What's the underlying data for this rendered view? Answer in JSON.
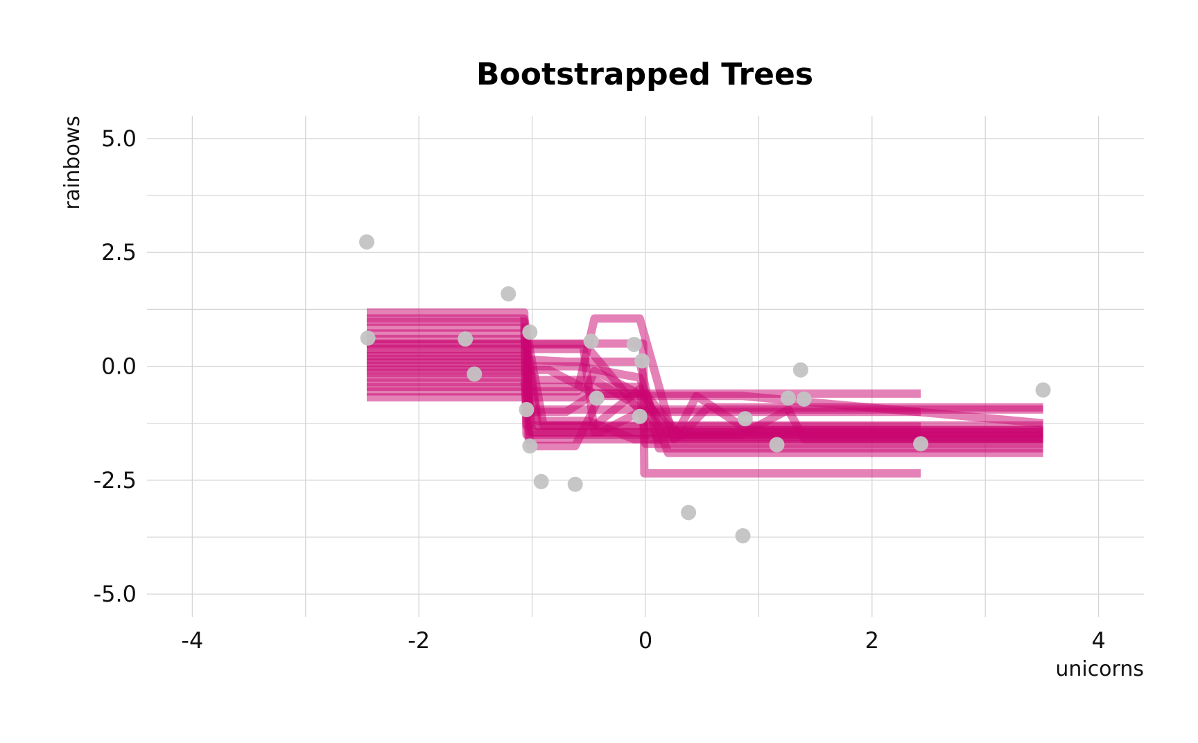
{
  "chart_data": {
    "type": "line",
    "title": "Bootstrapped Trees",
    "xlabel": "unicorns",
    "ylabel": "rainbows",
    "xlim": [
      -4.4,
      4.4
    ],
    "ylim": [
      -5.5,
      5.5
    ],
    "x_ticks": [
      -4,
      -2,
      0,
      2,
      4
    ],
    "x_tick_labels": [
      "-4",
      "-2",
      "0",
      "2",
      "4"
    ],
    "y_ticks": [
      -5,
      -2.5,
      0,
      2.5,
      5
    ],
    "y_tick_labels": [
      "-5.0",
      "-2.5",
      "0.0",
      "2.5",
      "5.0"
    ],
    "grid": true,
    "colors": {
      "points": "#c3c3c3",
      "lines": "#c9036f",
      "grid": "#d6d6d6"
    },
    "points": [
      {
        "x": -2.46,
        "y": 2.73
      },
      {
        "x": -2.45,
        "y": 0.62
      },
      {
        "x": -1.59,
        "y": 0.6
      },
      {
        "x": -1.51,
        "y": -0.17
      },
      {
        "x": -1.21,
        "y": 1.59
      },
      {
        "x": -1.02,
        "y": 0.75
      },
      {
        "x": -1.05,
        "y": -0.95
      },
      {
        "x": -1.02,
        "y": -1.75
      },
      {
        "x": -0.92,
        "y": -2.53
      },
      {
        "x": -0.62,
        "y": -2.59
      },
      {
        "x": -0.48,
        "y": 0.55
      },
      {
        "x": -0.43,
        "y": -0.7
      },
      {
        "x": -0.1,
        "y": 0.48
      },
      {
        "x": -0.03,
        "y": 0.12
      },
      {
        "x": -0.05,
        "y": -1.1
      },
      {
        "x": 0.38,
        "y": -3.21
      },
      {
        "x": 0.86,
        "y": -3.72
      },
      {
        "x": 0.88,
        "y": -1.15
      },
      {
        "x": 1.16,
        "y": -1.72
      },
      {
        "x": 1.26,
        "y": -0.7
      },
      {
        "x": 1.37,
        "y": -0.08
      },
      {
        "x": 1.4,
        "y": -0.72
      },
      {
        "x": 2.43,
        "y": -1.7
      },
      {
        "x": 3.51,
        "y": -0.52
      }
    ],
    "series": [
      {
        "x": [
          -2.46,
          -1.07,
          -1.05,
          2.43
        ],
        "y": [
          1.18,
          1.18,
          -1.5,
          -1.5
        ]
      },
      {
        "x": [
          -2.46,
          -1.07,
          -1.05,
          3.51
        ],
        "y": [
          0.98,
          0.98,
          -1.3,
          -1.3
        ]
      },
      {
        "x": [
          -2.46,
          -1.05,
          -1.02,
          3.51
        ],
        "y": [
          0.85,
          0.85,
          -1.45,
          -1.45
        ]
      },
      {
        "x": [
          -2.46,
          -1.07,
          -0.95,
          2.43
        ],
        "y": [
          0.72,
          0.72,
          -1.32,
          -1.32
        ]
      },
      {
        "x": [
          -2.46,
          -1.05,
          -0.95,
          -0.5,
          -0.1,
          3.51
        ],
        "y": [
          0.6,
          0.6,
          -1.2,
          -1.2,
          -1.6,
          -1.6
        ]
      },
      {
        "x": [
          -2.46,
          -1.07,
          -0.55,
          -0.45,
          0.85,
          3.51
        ],
        "y": [
          0.48,
          0.48,
          0.48,
          -1.45,
          -1.45,
          -1.45
        ]
      },
      {
        "x": [
          -2.46,
          -1.05,
          -0.5,
          -0.1,
          0.1,
          3.51
        ],
        "y": [
          0.38,
          0.38,
          0.38,
          -0.82,
          -1.55,
          -1.55
        ]
      },
      {
        "x": [
          -2.46,
          -1.05,
          -1.03,
          3.51
        ],
        "y": [
          0.3,
          0.3,
          -0.95,
          -0.95
        ]
      },
      {
        "x": [
          -2.46,
          -1.05,
          -1.02,
          -0.7,
          -0.45,
          2.43
        ],
        "y": [
          0.22,
          0.22,
          -1.0,
          -1.0,
          -0.6,
          -0.6
        ]
      },
      {
        "x": [
          -2.46,
          -1.07,
          -0.7,
          -0.05,
          0.12,
          3.51
        ],
        "y": [
          0.15,
          0.15,
          0.1,
          0.1,
          -1.8,
          -1.8
        ]
      },
      {
        "x": [
          -2.46,
          -1.05,
          -1.02,
          -0.62,
          -0.4,
          0.85,
          3.51
        ],
        "y": [
          0.08,
          0.08,
          -1.75,
          -1.75,
          -0.65,
          -0.65,
          -1.25
        ]
      },
      {
        "x": [
          -2.46,
          -1.05,
          -0.6,
          -0.05,
          0.2,
          3.51
        ],
        "y": [
          0.0,
          0.0,
          0.0,
          -0.25,
          -1.9,
          -1.9
        ]
      },
      {
        "x": [
          -2.46,
          -0.85,
          -0.45,
          0.0,
          0.3,
          3.51
        ],
        "y": [
          -0.08,
          -0.08,
          -0.6,
          -0.6,
          -1.5,
          -1.5
        ]
      },
      {
        "x": [
          -2.46,
          -1.05,
          -0.95,
          -0.45,
          -0.05,
          0.15,
          3.51
        ],
        "y": [
          -0.15,
          -0.15,
          -0.3,
          -0.3,
          -0.9,
          -1.4,
          -1.4
        ]
      },
      {
        "x": [
          -2.46,
          -1.07,
          -1.03,
          3.51
        ],
        "y": [
          -0.25,
          -0.25,
          -1.6,
          -1.6
        ]
      },
      {
        "x": [
          -2.46,
          -1.05,
          -1.0,
          -0.4,
          -0.05,
          2.43
        ],
        "y": [
          -0.35,
          -0.35,
          -1.45,
          -1.45,
          -1.0,
          -1.0
        ]
      },
      {
        "x": [
          -2.46,
          -1.05,
          -0.9,
          -0.05,
          0.0,
          0.85,
          3.51
        ],
        "y": [
          -0.45,
          -0.45,
          -0.45,
          -0.45,
          -1.7,
          -1.7,
          -1.7
        ]
      },
      {
        "x": [
          -2.46,
          -0.6,
          -0.45,
          -0.05,
          0.25,
          0.45,
          0.9,
          3.51
        ],
        "y": [
          -0.55,
          -0.55,
          1.05,
          1.05,
          -1.6,
          -0.65,
          -1.4,
          -1.4
        ]
      },
      {
        "x": [
          -2.46,
          -1.05,
          -0.55,
          -0.45,
          -0.1,
          0.3,
          0.55,
          1.25,
          1.4,
          3.51
        ],
        "y": [
          -0.68,
          -0.68,
          -0.68,
          -0.1,
          -0.55,
          -1.55,
          -0.9,
          -0.9,
          -1.6,
          -1.6
        ]
      },
      {
        "x": [
          -2.46,
          -1.05,
          -0.02,
          -0.01,
          2.43
        ],
        "y": [
          0.5,
          0.5,
          0.5,
          -2.35,
          -2.35
        ]
      },
      {
        "x": [
          -2.46,
          -1.07,
          -0.9,
          -0.45,
          -0.05,
          0.2,
          0.85,
          1.3,
          3.51
        ],
        "y": [
          1.05,
          1.05,
          -1.3,
          -1.3,
          -0.5,
          -1.5,
          -1.5,
          -0.9,
          -0.9
        ]
      }
    ]
  }
}
